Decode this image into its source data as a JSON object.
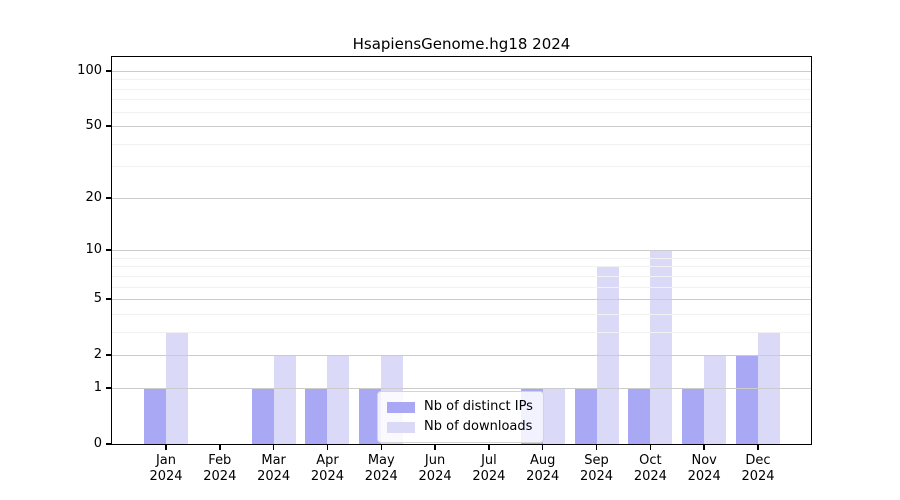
{
  "chart_data": {
    "type": "bar",
    "title": "HsapiensGenome.hg18 2024",
    "categories": [
      {
        "month": "Jan",
        "year": "2024"
      },
      {
        "month": "Feb",
        "year": "2024"
      },
      {
        "month": "Mar",
        "year": "2024"
      },
      {
        "month": "Apr",
        "year": "2024"
      },
      {
        "month": "May",
        "year": "2024"
      },
      {
        "month": "Jun",
        "year": "2024"
      },
      {
        "month": "Jul",
        "year": "2024"
      },
      {
        "month": "Aug",
        "year": "2024"
      },
      {
        "month": "Sep",
        "year": "2024"
      },
      {
        "month": "Oct",
        "year": "2024"
      },
      {
        "month": "Nov",
        "year": "2024"
      },
      {
        "month": "Dec",
        "year": "2024"
      }
    ],
    "series": [
      {
        "name": "Nb of distinct IPs",
        "color": "#a8a8f5",
        "values": [
          1,
          0,
          1,
          1,
          1,
          0,
          0,
          1,
          1,
          1,
          1,
          2
        ]
      },
      {
        "name": "Nb of downloads",
        "color": "#dadaf8",
        "values": [
          3,
          0,
          2,
          2,
          2,
          0,
          0,
          1,
          8,
          10,
          2,
          3
        ]
      }
    ],
    "y_axis": {
      "scale": "log1p",
      "tick_labels": [
        0,
        1,
        2,
        5,
        10,
        20,
        50,
        100
      ],
      "minor_gridlines": [
        3,
        4,
        6,
        7,
        8,
        9,
        30,
        40,
        60,
        70,
        80,
        90
      ],
      "range": [
        0,
        100
      ]
    },
    "legend": {
      "position": "inside-bottom-center"
    },
    "grid": true,
    "style": {
      "major_grid_color": "#cccccc",
      "minor_grid_color": "#f1f1f1",
      "axis_color": "#000000",
      "background": "#ffffff"
    }
  }
}
